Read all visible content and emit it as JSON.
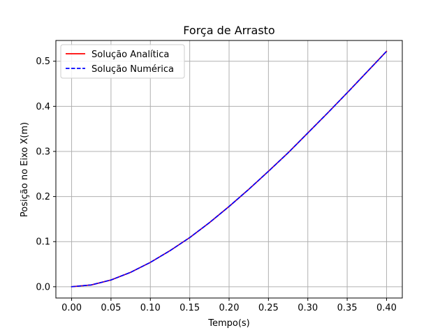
{
  "chart_data": {
    "type": "line",
    "title": "Força de Arrasto",
    "xlabel": "Tempo(s)",
    "ylabel": "Posição no Eixo X(m)",
    "xlim": [
      -0.02,
      0.42
    ],
    "ylim": [
      -0.025,
      0.546
    ],
    "xticks": [
      0.0,
      0.05,
      0.1,
      0.15,
      0.2,
      0.25,
      0.3,
      0.35,
      0.4
    ],
    "xtick_labels": [
      "0.00",
      "0.05",
      "0.10",
      "0.15",
      "0.20",
      "0.25",
      "0.30",
      "0.35",
      "0.40"
    ],
    "yticks": [
      0.0,
      0.1,
      0.2,
      0.3,
      0.4,
      0.5
    ],
    "ytick_labels": [
      "0.0",
      "0.1",
      "0.2",
      "0.3",
      "0.4",
      "0.5"
    ],
    "grid": true,
    "legend_position": "upper-left",
    "x": [
      0.0,
      0.025,
      0.05,
      0.075,
      0.1,
      0.125,
      0.15,
      0.175,
      0.2,
      0.225,
      0.25,
      0.275,
      0.3,
      0.325,
      0.35,
      0.375,
      0.4
    ],
    "series": [
      {
        "name": "Solução Analítica",
        "color": "#ff0000",
        "style": "solid",
        "values": [
          0.0,
          0.004,
          0.015,
          0.032,
          0.054,
          0.08,
          0.109,
          0.142,
          0.178,
          0.216,
          0.256,
          0.297,
          0.341,
          0.385,
          0.43,
          0.476,
          0.522
        ]
      },
      {
        "name": "Solução Numérica",
        "color": "#0000ff",
        "style": "dashed",
        "values": [
          0.0,
          0.004,
          0.015,
          0.032,
          0.054,
          0.08,
          0.109,
          0.142,
          0.178,
          0.216,
          0.256,
          0.297,
          0.341,
          0.385,
          0.43,
          0.476,
          0.522
        ]
      }
    ]
  }
}
